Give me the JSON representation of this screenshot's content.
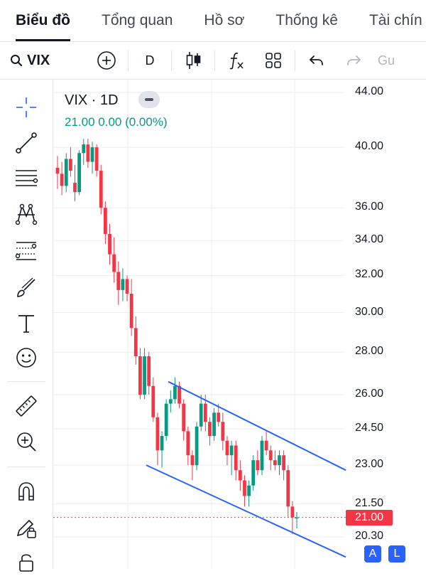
{
  "tabs": [
    "Biểu đồ",
    "Tổng quan",
    "Hồ sơ",
    "Thống kê",
    "Tài chín"
  ],
  "toolbar": {
    "symbol": "VIX",
    "interval": "D",
    "indicator_label": "fx",
    "redo_label": "Gu"
  },
  "legend": {
    "title": "VIX · 1D",
    "ohlc": "21.00  0.00 (0.00%)"
  },
  "last_price": "21.00",
  "buttons": {
    "auto": "A",
    "log": "L"
  },
  "chart_data": {
    "type": "candlestick",
    "symbol": "VIX",
    "interval": "1D",
    "y_ticks": [
      "44.00",
      "40.00",
      "36.00",
      "34.00",
      "32.00",
      "30.00",
      "28.00",
      "26.00",
      "24.50",
      "23.00",
      "21.50",
      "20.30"
    ],
    "ylim": [
      19.2,
      45
    ],
    "log_scale": true,
    "last_price": 21.0,
    "colors": {
      "up": "#089981",
      "down": "#f23645",
      "trendline": "#2962ff"
    },
    "candles": [
      [
        38.6,
        39.4,
        37.2,
        38.2
      ],
      [
        38.2,
        39.0,
        36.8,
        37.4
      ],
      [
        37.4,
        39.6,
        37.0,
        39.2
      ],
      [
        39.2,
        40.0,
        38.0,
        38.4
      ],
      [
        37.6,
        38.8,
        36.4,
        37.0
      ],
      [
        37.0,
        39.8,
        36.8,
        39.6
      ],
      [
        39.6,
        40.6,
        38.8,
        40.2
      ],
      [
        40.2,
        40.6,
        38.6,
        39.0
      ],
      [
        39.0,
        40.4,
        38.2,
        40.0
      ],
      [
        40.0,
        40.2,
        38.0,
        38.4
      ],
      [
        38.4,
        38.8,
        35.6,
        36.0
      ],
      [
        36.0,
        36.4,
        33.8,
        34.4
      ],
      [
        34.4,
        35.0,
        32.6,
        33.2
      ],
      [
        33.2,
        34.2,
        31.6,
        32.2
      ],
      [
        32.2,
        32.8,
        30.4,
        31.2
      ],
      [
        31.2,
        32.4,
        30.6,
        31.8
      ],
      [
        31.8,
        32.0,
        30.6,
        31.0
      ],
      [
        31.0,
        31.8,
        28.8,
        29.2
      ],
      [
        29.2,
        29.8,
        27.4,
        27.8
      ],
      [
        27.8,
        28.2,
        25.8,
        26.0
      ],
      [
        26.0,
        28.2,
        25.8,
        27.8
      ],
      [
        27.8,
        28.0,
        26.0,
        26.4
      ],
      [
        26.4,
        26.8,
        24.8,
        25.0
      ],
      [
        25.0,
        25.2,
        23.0,
        23.6
      ],
      [
        23.6,
        24.4,
        22.9,
        24.2
      ],
      [
        24.2,
        25.8,
        24.0,
        25.6
      ],
      [
        25.6,
        26.2,
        25.2,
        25.8
      ],
      [
        25.8,
        26.8,
        25.6,
        26.4
      ],
      [
        26.4,
        26.6,
        25.4,
        25.6
      ],
      [
        25.6,
        25.8,
        24.0,
        24.4
      ],
      [
        24.4,
        24.6,
        23.0,
        23.4
      ],
      [
        23.4,
        23.6,
        22.4,
        23.0
      ],
      [
        23.0,
        24.8,
        22.8,
        24.6
      ],
      [
        24.6,
        26.0,
        24.4,
        25.6
      ],
      [
        25.6,
        26.0,
        24.4,
        24.8
      ],
      [
        24.8,
        25.0,
        23.8,
        24.2
      ],
      [
        24.2,
        25.4,
        24.0,
        25.2
      ],
      [
        25.2,
        25.6,
        24.6,
        24.8
      ],
      [
        24.8,
        25.2,
        23.6,
        24.0
      ],
      [
        24.0,
        24.2,
        23.0,
        23.4
      ],
      [
        23.4,
        24.0,
        22.6,
        23.8
      ],
      [
        23.8,
        24.0,
        22.4,
        22.8
      ],
      [
        22.8,
        23.2,
        22.0,
        22.4
      ],
      [
        22.4,
        22.6,
        21.4,
        21.8
      ],
      [
        21.8,
        22.4,
        21.4,
        22.2
      ],
      [
        22.2,
        23.4,
        22.0,
        23.2
      ],
      [
        23.2,
        23.6,
        22.6,
        22.8
      ],
      [
        22.8,
        24.2,
        22.6,
        24.0
      ],
      [
        24.0,
        24.4,
        23.4,
        23.6
      ],
      [
        23.6,
        23.8,
        22.8,
        23.2
      ],
      [
        23.2,
        23.6,
        22.8,
        23.0
      ],
      [
        23.0,
        23.6,
        22.6,
        23.4
      ],
      [
        23.4,
        23.6,
        22.4,
        22.8
      ],
      [
        22.8,
        23.0,
        21.0,
        21.4
      ],
      [
        21.4,
        21.6,
        20.4,
        21.0
      ],
      [
        21.0,
        21.2,
        20.6,
        21.0
      ]
    ],
    "trendlines": [
      {
        "from": [
          0,
          26.6
        ],
        "to": [
          1,
          22.8
        ]
      },
      {
        "from": [
          0,
          23.0
        ],
        "to": [
          1,
          19.6
        ]
      }
    ]
  }
}
